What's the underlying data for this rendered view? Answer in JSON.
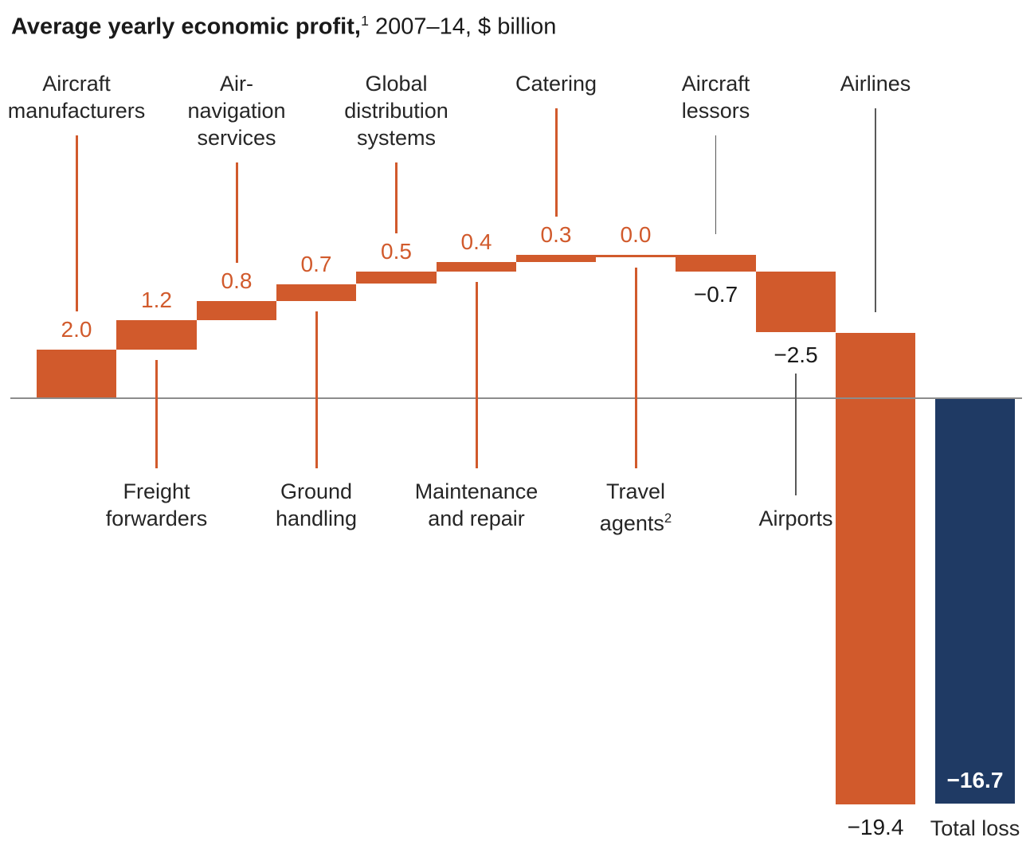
{
  "title": {
    "bold": "Average yearly economic profit,",
    "superscript": "1",
    "rest": " 2007–14, $ billion"
  },
  "chart_data": {
    "type": "waterfall",
    "title": "Average yearly economic profit, 2007–14, $ billion",
    "unit": "$ billion",
    "period": "2007–14",
    "grid": false,
    "legend": false,
    "zero_baseline": true,
    "categories": [
      "Aircraft manufacturers",
      "Freight forwarders",
      "Air-navigation services",
      "Ground handling",
      "Global distribution systems",
      "Maintenance and repair",
      "Catering",
      "Travel agents",
      "Aircraft lessors",
      "Airports",
      "Airlines",
      "Total loss"
    ],
    "values": [
      2.0,
      1.2,
      0.8,
      0.7,
      0.5,
      0.4,
      0.3,
      0.0,
      -0.7,
      -2.5,
      -19.4,
      -16.7
    ],
    "colors": {
      "delta_bar": "#d15a2c",
      "total_bar": "#1f3a64",
      "positive_value_text": "#d15a2c",
      "negative_value_text": "#1a1a1a",
      "category_text": "#262626",
      "orange_connector": "#d15a2c",
      "gray_connector": "#595959",
      "axis_line": "#8c8c8c"
    },
    "segments": [
      {
        "id": "aircraft-manufacturers",
        "label": "Aircraft manufacturers",
        "label_lines": [
          "Aircraft",
          "manufacturers"
        ],
        "label_side": "top",
        "value": 2.0,
        "value_label": "2.0",
        "kind": "delta"
      },
      {
        "id": "freight-forwarders",
        "label": "Freight forwarders",
        "label_lines": [
          "Freight",
          "forwarders"
        ],
        "label_side": "bottom",
        "value": 1.2,
        "value_label": "1.2",
        "kind": "delta"
      },
      {
        "id": "air-navigation-services",
        "label": "Air-navigation services",
        "label_lines": [
          "Air-",
          "navigation",
          "services"
        ],
        "label_side": "top",
        "value": 0.8,
        "value_label": "0.8",
        "kind": "delta"
      },
      {
        "id": "ground-handling",
        "label": "Ground handling",
        "label_lines": [
          "Ground",
          "handling"
        ],
        "label_side": "bottom",
        "value": 0.7,
        "value_label": "0.7",
        "kind": "delta"
      },
      {
        "id": "global-distribution-systems",
        "label": "Global distribution systems",
        "label_lines": [
          "Global",
          "distribution",
          "systems"
        ],
        "label_side": "top",
        "value": 0.5,
        "value_label": "0.5",
        "kind": "delta"
      },
      {
        "id": "maintenance-and-repair",
        "label": "Maintenance and repair",
        "label_lines": [
          "Maintenance",
          "and repair"
        ],
        "label_side": "bottom",
        "value": 0.4,
        "value_label": "0.4",
        "kind": "delta"
      },
      {
        "id": "catering",
        "label": "Catering",
        "label_lines": [
          "Catering"
        ],
        "label_side": "top",
        "value": 0.3,
        "value_label": "0.3",
        "kind": "delta"
      },
      {
        "id": "travel-agents",
        "label": "Travel agents",
        "label_lines": [
          "Travel",
          "agents"
        ],
        "label_sup": "2",
        "label_side": "bottom",
        "value": 0.0,
        "value_label": "0.0",
        "kind": "delta"
      },
      {
        "id": "aircraft-lessors",
        "label": "Aircraft lessors",
        "label_lines": [
          "Aircraft",
          "lessors"
        ],
        "label_side": "top",
        "value": -0.7,
        "value_label": "−0.7",
        "kind": "delta"
      },
      {
        "id": "airports",
        "label": "Airports",
        "label_lines": [
          "Airports"
        ],
        "label_side": "bottom",
        "value": -2.5,
        "value_label": "−2.5",
        "kind": "delta"
      },
      {
        "id": "airlines",
        "label": "Airlines",
        "label_lines": [
          "Airlines"
        ],
        "label_side": "top",
        "value": -19.4,
        "value_label": "−19.4",
        "kind": "delta"
      },
      {
        "id": "total-loss",
        "label": "Total loss",
        "label_lines": [
          "Total loss"
        ],
        "label_side": "bottom",
        "value": -16.7,
        "value_label": "−16.7",
        "kind": "total"
      }
    ]
  }
}
